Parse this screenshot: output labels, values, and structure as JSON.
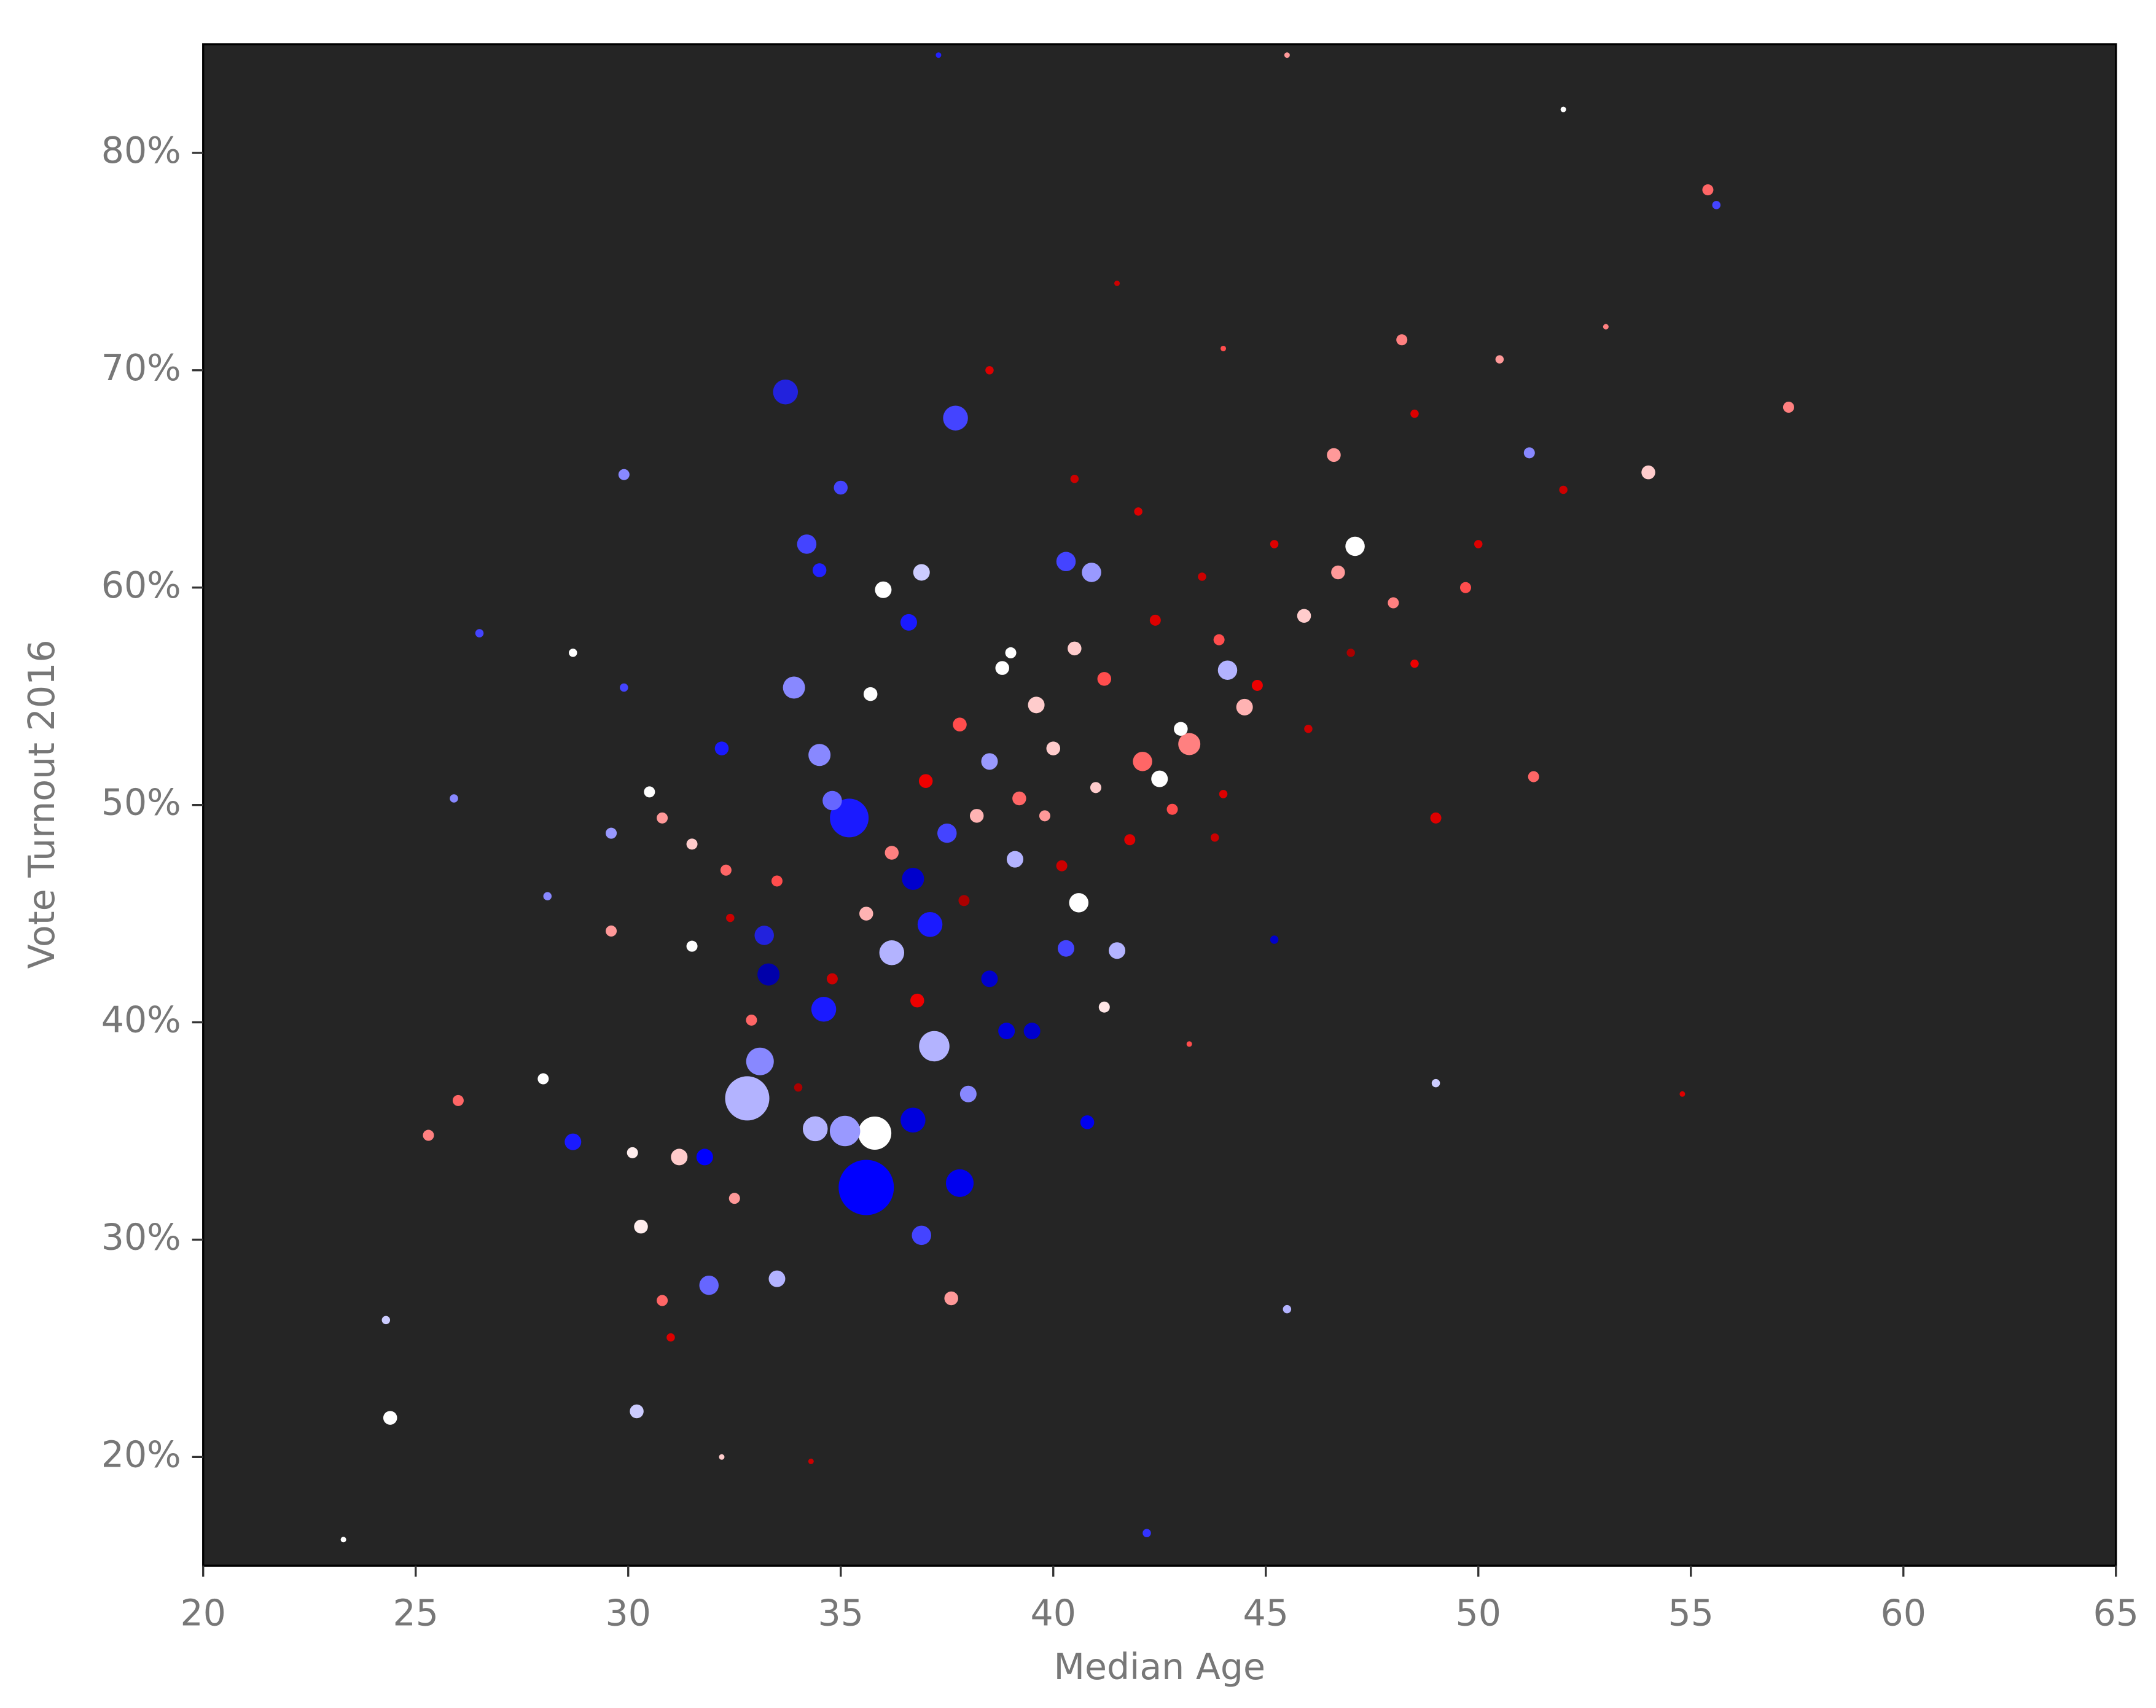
{
  "chart_data": {
    "type": "scatter",
    "x_label": "Median Age",
    "y_label": "Vote Turnout 2016",
    "xlim": [
      20,
      65
    ],
    "ylim": [
      15,
      85
    ],
    "xticks": [
      20,
      25,
      30,
      35,
      40,
      45,
      50,
      55,
      60,
      65
    ],
    "yticks": [
      {
        "value": 20,
        "label": "20%"
      },
      {
        "value": 30,
        "label": "30%"
      },
      {
        "value": 40,
        "label": "40%"
      },
      {
        "value": 50,
        "label": "50%"
      },
      {
        "value": 60,
        "label": "60%"
      },
      {
        "value": 70,
        "label": "70%"
      },
      {
        "value": 80,
        "label": "80%"
      }
    ],
    "background": "#252525",
    "x": [
      35.6,
      32.8,
      35.8,
      35.2,
      37.8,
      33.7,
      37.7,
      37.2,
      34.4,
      35.1,
      33.1,
      36.2,
      37.1,
      36.7,
      40.6,
      47.1,
      54.0,
      57.3,
      24.4,
      42.2,
      23.3,
      36.9,
      31.9,
      37.6,
      33.5,
      30.2,
      29.9,
      34.2,
      35.0,
      36.0,
      34.5,
      33.9,
      34.5,
      34.8,
      36.7,
      37.5,
      33.2,
      33.3,
      34.6,
      32.2,
      36.6,
      40.3,
      40.9,
      44.1,
      39.1,
      38.5,
      41.5,
      40.3,
      38.9,
      39.5,
      38.5,
      38.0,
      40.8,
      28.7,
      31.2,
      31.8,
      30.3,
      28.0,
      24.3,
      25.3,
      26.0,
      25.9,
      26.5,
      28.7,
      29.9,
      30.5,
      29.6,
      30.8,
      31.5,
      28.1,
      29.6,
      31.5,
      32.3,
      35.7,
      36.9,
      38.8,
      39.6,
      42.1,
      42.5,
      43.2,
      44.5,
      45.9,
      46.7,
      48.0,
      49.7,
      48.2,
      51.2,
      51.3,
      49.0,
      55.4,
      55.6,
      46.6,
      43.0,
      41.2,
      40.0,
      39.2,
      38.2,
      37.8,
      37.0,
      40.5,
      42.4,
      43.9,
      44.8,
      41.8,
      42.8,
      40.2,
      39.8,
      36.2,
      35.6,
      36.8,
      34.8,
      33.5,
      32.9,
      32.4,
      37.9,
      43.5,
      45.2,
      47.0,
      46.0,
      44.0,
      42.0,
      40.5,
      38.5,
      41.5,
      44.0,
      48.5,
      50.5,
      52.0,
      50.0,
      48.5,
      53.0,
      52.0,
      45.5,
      37.3,
      32.2,
      34.3,
      39.0,
      41.0,
      43.8,
      45.2,
      41.2,
      43.2,
      54.8,
      49.0,
      45.5,
      30.1,
      32.5,
      31.0,
      30.8,
      34.0
    ],
    "values": [
      32.4,
      36.5,
      34.9,
      49.4,
      32.6,
      69.0,
      67.8,
      38.9,
      35.1,
      35.0,
      38.2,
      43.2,
      44.5,
      35.5,
      45.5,
      61.9,
      65.3,
      68.3,
      21.8,
      16.5,
      16.2,
      30.2,
      27.9,
      27.3,
      28.2,
      22.1,
      65.2,
      62.0,
      64.6,
      59.9,
      60.8,
      55.4,
      52.3,
      50.2,
      46.6,
      48.7,
      44.0,
      42.2,
      40.6,
      52.6,
      58.4,
      61.2,
      60.7,
      56.2,
      47.5,
      52.0,
      43.3,
      43.4,
      39.6,
      39.6,
      42.0,
      36.7,
      35.4,
      34.5,
      33.8,
      33.8,
      30.6,
      37.4,
      26.3,
      34.8,
      36.4,
      50.3,
      57.9,
      57.0,
      55.4,
      50.6,
      48.7,
      49.4,
      48.2,
      45.8,
      44.2,
      43.5,
      47.0,
      55.1,
      60.7,
      56.3,
      54.6,
      52.0,
      51.2,
      52.8,
      54.5,
      58.7,
      60.7,
      59.3,
      60.0,
      71.4,
      66.2,
      51.3,
      49.4,
      78.3,
      77.6,
      66.1,
      53.5,
      55.8,
      52.6,
      50.3,
      49.5,
      53.7,
      51.1,
      57.2,
      58.5,
      57.6,
      55.5,
      48.4,
      49.8,
      47.2,
      49.5,
      47.8,
      45.0,
      41.0,
      42.0,
      46.5,
      40.1,
      44.8,
      45.6,
      60.5,
      62.0,
      57.0,
      53.5,
      50.5,
      63.5,
      65.0,
      70.0,
      74.0,
      71.0,
      68.0,
      70.5,
      64.5,
      62.0,
      56.5,
      72.0,
      82.0,
      84.5,
      84.5,
      20.0,
      19.8,
      57.0,
      50.8,
      48.5,
      43.8,
      40.7,
      39.0,
      36.7,
      37.2,
      26.8,
      34.0,
      31.9,
      25.5,
      27.2,
      37.0
    ],
    "sizes": [
      20,
      16,
      12,
      14,
      10,
      9,
      9,
      11,
      9,
      11,
      10,
      9,
      9,
      9,
      7,
      7,
      5,
      4,
      5,
      3,
      2,
      7,
      7,
      5,
      6,
      5,
      4,
      7,
      5,
      6,
      5,
      8,
      8,
      7,
      8,
      7,
      7,
      8,
      9,
      5,
      6,
      7,
      7,
      7,
      6,
      6,
      6,
      6,
      6,
      6,
      6,
      6,
      5,
      6,
      6,
      6,
      5,
      4,
      3,
      4,
      4,
      3,
      3,
      3,
      3,
      4,
      4,
      4,
      4,
      3,
      4,
      4,
      4,
      5,
      6,
      5,
      6,
      7,
      6,
      8,
      6,
      5,
      5,
      4,
      4,
      4,
      4,
      4,
      4,
      4,
      3,
      5,
      5,
      5,
      5,
      5,
      5,
      5,
      5,
      5,
      4,
      4,
      4,
      4,
      4,
      4,
      4,
      5,
      5,
      5,
      4,
      4,
      4,
      3,
      4,
      3,
      3,
      3,
      3,
      3,
      3,
      3,
      3,
      2,
      2,
      3,
      3,
      3,
      3,
      3,
      2,
      2,
      2,
      2,
      2,
      2,
      4,
      4,
      3,
      3,
      4,
      2,
      2,
      3,
      3,
      4,
      4,
      3,
      4,
      3
    ],
    "colors": [
      "#0000ff",
      "#b3b3ff",
      "#ffffff",
      "#1a1aff",
      "#0000ee",
      "#2222dd",
      "#4444ff",
      "#b3b3ff",
      "#b3b3ff",
      "#9999ff",
      "#8888ff",
      "#b3b3ff",
      "#1a1aff",
      "#0000dd",
      "#ffffff",
      "#ffffff",
      "#ffcccc",
      "#ff8080",
      "#ffffff",
      "#3333ff",
      "#ffffff",
      "#4444ff",
      "#6666ff",
      "#ff9999",
      "#b3b3ff",
      "#ccccff",
      "#8888ff",
      "#4444ff",
      "#4444ff",
      "#ffffff",
      "#2222ff",
      "#8888ff",
      "#8888ff",
      "#6666ff",
      "#0000cc",
      "#4444ff",
      "#2222dd",
      "#0000aa",
      "#1a1aff",
      "#1a1aff",
      "#1a1aff",
      "#4444ff",
      "#9999ff",
      "#b3b3ff",
      "#b3b3ff",
      "#9999ff",
      "#b3b3ff",
      "#4444ff",
      "#0000dd",
      "#0000cc",
      "#0000cc",
      "#8888ff",
      "#0000ee",
      "#1a1aff",
      "#ffcccc",
      "#0000ff",
      "#ffeeee",
      "#ffffff",
      "#ccccff",
      "#ff8080",
      "#ff6666",
      "#8888ff",
      "#4444ff",
      "#ffffff",
      "#4444ff",
      "#ffffff",
      "#9999ff",
      "#ff9999",
      "#ffcccc",
      "#8888ff",
      "#ff9999",
      "#ffffff",
      "#ff6666",
      "#ffffff",
      "#ccccff",
      "#ffffff",
      "#ffcccc",
      "#ff6666",
      "#ffffff",
      "#ff8080",
      "#ffb3b3",
      "#ffcccc",
      "#ff9999",
      "#ff8080",
      "#ff4d4d",
      "#ff8080",
      "#8888ff",
      "#ff6666",
      "#dd0000",
      "#ff6666",
      "#4444ff",
      "#ff9999",
      "#ffffff",
      "#ff4d4d",
      "#ffcccc",
      "#ff6666",
      "#ffb3b3",
      "#ff4d4d",
      "#ee0000",
      "#ffcccc",
      "#dd0000",
      "#ff4d4d",
      "#ee0000",
      "#dd0000",
      "#ff4d4d",
      "#cc0000",
      "#ff9999",
      "#ff8080",
      "#ffb3b3",
      "#ee0000",
      "#cc0000",
      "#ff4d4d",
      "#ff6666",
      "#cc0000",
      "#aa0000",
      "#cc0000",
      "#dd0000",
      "#aa0000",
      "#cc0000",
      "#dd0000",
      "#dd0000",
      "#cc0000",
      "#dd0000",
      "#cc0000",
      "#ff4d4d",
      "#dd0000",
      "#ff9999",
      "#cc0000",
      "#dd0000",
      "#ee0000",
      "#ff8080",
      "#ffffff",
      "#ff9999",
      "#2222ff",
      "#ffcccc",
      "#cc0000",
      "#ffffff",
      "#ffcccc",
      "#cc0000",
      "#0000cc",
      "#ffe6e6",
      "#ff4d4d",
      "#dd0000",
      "#ccccff",
      "#b3b3ff",
      "#ffeeee",
      "#ff9999",
      "#dd0000",
      "#ff6666",
      "#aa0000"
    ]
  }
}
